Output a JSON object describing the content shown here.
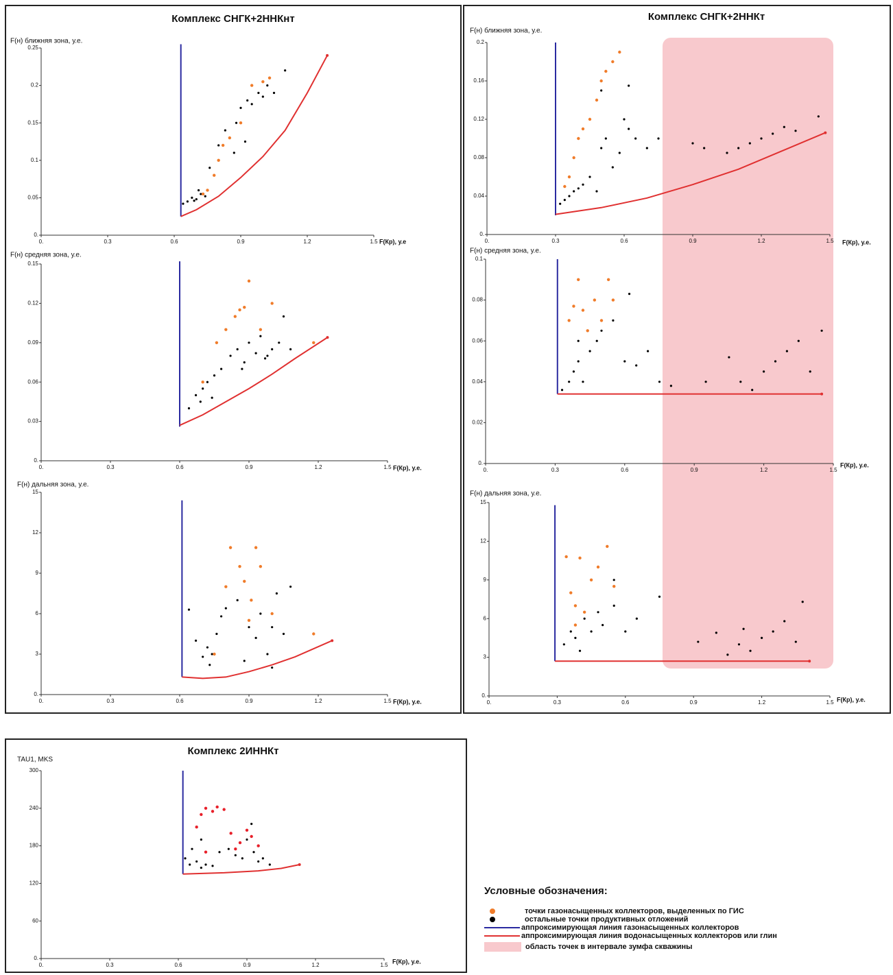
{
  "chart_data": [
    {
      "type": "scatter",
      "title": "Комплекс СНГК+2ННКнт",
      "ylabel": "F(н) ближняя зона, у.е.",
      "xlabel": "F(Кр), у.е",
      "xlim": [
        0,
        1.5
      ],
      "xticks": [
        {
          "value": 0,
          "label": "0."
        },
        0.3,
        0.6,
        0.9,
        1.2,
        1.5
      ],
      "ylim": [
        0,
        0.25
      ],
      "yticks": [
        {
          "value": 0,
          "label": "0."
        },
        0.05,
        0.1,
        0.15,
        0.2,
        0.25
      ],
      "series": [
        {
          "style": "line",
          "color": "#2a2aa0",
          "x": [
            0.63,
            0.63
          ],
          "values": [
            0.025,
            0.255
          ]
        },
        {
          "style": "line",
          "color": "#e03030",
          "x": [
            0.63,
            0.7,
            0.8,
            0.9,
            1.0,
            1.1,
            1.2,
            1.29
          ],
          "values": [
            0.025,
            0.034,
            0.052,
            0.077,
            0.105,
            0.14,
            0.19,
            0.24
          ]
        },
        {
          "style": "markers",
          "color": "#000000",
          "x": [
            0.64,
            0.66,
            0.68,
            0.7,
            0.72,
            0.74,
            0.71,
            0.69,
            0.76,
            0.8,
            0.83,
            0.85,
            0.88,
            0.9,
            0.93,
            0.95,
            0.98,
            1.0,
            1.02,
            1.05,
            1.1,
            0.87,
            0.92
          ],
          "values": [
            0.042,
            0.045,
            0.05,
            0.048,
            0.055,
            0.052,
            0.06,
            0.046,
            0.09,
            0.12,
            0.14,
            0.13,
            0.15,
            0.17,
            0.18,
            0.175,
            0.19,
            0.185,
            0.2,
            0.19,
            0.22,
            0.11,
            0.125
          ]
        },
        {
          "style": "markers",
          "color": "#f07c2a",
          "x": [
            0.75,
            0.78,
            0.8,
            0.82,
            0.85,
            0.9,
            0.95,
            1.0,
            1.03,
            0.73
          ],
          "values": [
            0.06,
            0.08,
            0.1,
            0.12,
            0.13,
            0.15,
            0.2,
            0.205,
            0.21,
            0.055
          ]
        }
      ]
    },
    {
      "type": "scatter",
      "ylabel": "F(н) средняя зона, у.е.",
      "xlabel": "F(Кр), у.е.",
      "xlim": [
        0,
        1.5
      ],
      "xticks": [
        {
          "value": 0,
          "label": "0."
        },
        0.3,
        0.6,
        0.9,
        1.2,
        1.5
      ],
      "ylim": [
        0,
        0.15
      ],
      "yticks": [
        {
          "value": 0,
          "label": "0."
        },
        0.03,
        0.06,
        0.09,
        0.12,
        0.15
      ],
      "series": [
        {
          "style": "line",
          "color": "#2a2aa0",
          "x": [
            0.6,
            0.6
          ],
          "values": [
            0.026,
            0.152
          ]
        },
        {
          "style": "line",
          "color": "#e03030",
          "x": [
            0.6,
            0.7,
            0.8,
            0.9,
            1.0,
            1.1,
            1.24
          ],
          "values": [
            0.027,
            0.035,
            0.045,
            0.055,
            0.066,
            0.078,
            0.094
          ]
        },
        {
          "style": "markers",
          "color": "#000000",
          "x": [
            0.64,
            0.67,
            0.7,
            0.72,
            0.74,
            0.69,
            0.75,
            0.78,
            0.82,
            0.85,
            0.88,
            0.9,
            0.93,
            0.95,
            0.98,
            1.0,
            1.03,
            1.05,
            0.87,
            0.97,
            1.08
          ],
          "values": [
            0.04,
            0.05,
            0.055,
            0.06,
            0.048,
            0.045,
            0.065,
            0.07,
            0.08,
            0.085,
            0.075,
            0.09,
            0.082,
            0.095,
            0.08,
            0.085,
            0.09,
            0.11,
            0.07,
            0.078,
            0.085
          ]
        },
        {
          "style": "markers",
          "color": "#f07c2a",
          "x": [
            0.7,
            0.76,
            0.8,
            0.84,
            0.86,
            0.88,
            0.9,
            0.95,
            1.0,
            1.18
          ],
          "values": [
            0.06,
            0.09,
            0.1,
            0.11,
            0.115,
            0.117,
            0.137,
            0.1,
            0.12,
            0.09
          ]
        }
      ]
    },
    {
      "type": "scatter",
      "ylabel": "F(н) дальняя зона, у.е.",
      "xlabel": "F(Кр), у.е.",
      "xlim": [
        0,
        1.5
      ],
      "xticks": [
        {
          "value": 0,
          "label": "0."
        },
        0.3,
        0.6,
        0.9,
        1.2,
        1.5
      ],
      "ylim": [
        0,
        15
      ],
      "yticks": [
        {
          "value": 0,
          "label": "0."
        },
        3,
        6,
        9,
        12,
        15
      ],
      "series": [
        {
          "style": "line",
          "color": "#2a2aa0",
          "x": [
            0.61,
            0.61
          ],
          "values": [
            1.3,
            14.4
          ]
        },
        {
          "style": "line",
          "color": "#e03030",
          "x": [
            0.61,
            0.7,
            0.8,
            0.9,
            1.0,
            1.1,
            1.26
          ],
          "values": [
            1.3,
            1.2,
            1.3,
            1.7,
            2.2,
            2.8,
            4.0
          ]
        },
        {
          "style": "markers",
          "color": "#000000",
          "x": [
            0.64,
            0.67,
            0.7,
            0.72,
            0.74,
            0.76,
            0.78,
            0.8,
            0.85,
            0.9,
            0.93,
            0.95,
            0.98,
            1.0,
            1.02,
            1.05,
            1.08,
            0.73,
            0.88,
            1.0
          ],
          "values": [
            6.3,
            4,
            2.8,
            3.5,
            3,
            4.5,
            5.8,
            6.4,
            7,
            5,
            4.2,
            6,
            3,
            5,
            7.5,
            4.5,
            8,
            2.2,
            2.5,
            2
          ]
        },
        {
          "style": "markers",
          "color": "#f07c2a",
          "x": [
            0.75,
            0.8,
            0.82,
            0.86,
            0.88,
            0.91,
            0.93,
            0.95,
            1.0,
            1.18,
            0.9
          ],
          "values": [
            3,
            8,
            10.9,
            9.5,
            8.4,
            7,
            10.9,
            9.5,
            6,
            4.5,
            5.5
          ]
        }
      ]
    },
    {
      "type": "scatter",
      "title": "Комплекс СНГК+2ННКт",
      "ylabel": "F(н) ближняя зона, у.е.",
      "xlabel": "F(Кр), у.е.",
      "xlim": [
        0,
        1.5
      ],
      "xticks": [
        {
          "value": 0,
          "label": "0."
        },
        0.3,
        0.6,
        0.9,
        1.2,
        1.5
      ],
      "ylim": [
        0,
        0.2
      ],
      "yticks": [
        {
          "value": 0,
          "label": "0."
        },
        0.04,
        0.08,
        0.12,
        0.16,
        0.2
      ],
      "series": [
        {
          "style": "line",
          "color": "#2a2aa0",
          "x": [
            0.3,
            0.3
          ],
          "values": [
            0.02,
            0.2
          ]
        },
        {
          "style": "line",
          "color": "#e03030",
          "x": [
            0.3,
            0.5,
            0.7,
            0.9,
            1.1,
            1.3,
            1.48
          ],
          "values": [
            0.021,
            0.028,
            0.038,
            0.052,
            0.068,
            0.088,
            0.106
          ]
        },
        {
          "style": "markers",
          "color": "#000000",
          "x": [
            0.32,
            0.34,
            0.36,
            0.38,
            0.4,
            0.42,
            0.45,
            0.48,
            0.5,
            0.52,
            0.55,
            0.58,
            0.6,
            0.62,
            0.65,
            0.7,
            0.75,
            0.9,
            0.95,
            1.05,
            1.1,
            1.15,
            1.2,
            1.25,
            1.3,
            1.35,
            1.45,
            0.5,
            0.55,
            0.62
          ],
          "values": [
            0.032,
            0.036,
            0.04,
            0.045,
            0.048,
            0.052,
            0.06,
            0.045,
            0.09,
            0.1,
            0.07,
            0.085,
            0.12,
            0.11,
            0.1,
            0.09,
            0.1,
            0.095,
            0.09,
            0.085,
            0.09,
            0.095,
            0.1,
            0.105,
            0.112,
            0.108,
            0.123,
            0.15,
            0.18,
            0.155
          ]
        },
        {
          "style": "markers",
          "color": "#f07c2a",
          "x": [
            0.34,
            0.36,
            0.38,
            0.4,
            0.42,
            0.45,
            0.48,
            0.5,
            0.52,
            0.55,
            0.58
          ],
          "values": [
            0.05,
            0.06,
            0.08,
            0.1,
            0.11,
            0.12,
            0.14,
            0.16,
            0.17,
            0.18,
            0.19
          ]
        }
      ]
    },
    {
      "type": "scatter",
      "ylabel": "F(н) средняя зона, у.е.",
      "xlabel": "F(Кр), у.е.",
      "xlim": [
        0,
        1.5
      ],
      "xticks": [
        {
          "value": 0,
          "label": "0."
        },
        0.3,
        0.6,
        0.9,
        1.2,
        1.5
      ],
      "ylim": [
        0,
        0.1
      ],
      "yticks": [
        {
          "value": 0,
          "label": "0."
        },
        0.02,
        0.04,
        0.06,
        0.08,
        0.1
      ],
      "series": [
        {
          "style": "line",
          "color": "#2a2aa0",
          "x": [
            0.31,
            0.31
          ],
          "values": [
            0.034,
            0.1
          ]
        },
        {
          "style": "line",
          "color": "#e03030",
          "x": [
            0.31,
            1.45
          ],
          "values": [
            0.034,
            0.034
          ]
        },
        {
          "style": "markers",
          "color": "#000000",
          "x": [
            0.33,
            0.36,
            0.38,
            0.4,
            0.42,
            0.45,
            0.48,
            0.5,
            0.55,
            0.6,
            0.65,
            0.7,
            0.75,
            0.8,
            0.95,
            1.05,
            1.1,
            1.15,
            1.2,
            1.25,
            1.3,
            1.35,
            1.4,
            1.45,
            0.62,
            0.4
          ],
          "values": [
            0.036,
            0.04,
            0.045,
            0.05,
            0.04,
            0.055,
            0.06,
            0.065,
            0.07,
            0.05,
            0.048,
            0.055,
            0.04,
            0.038,
            0.04,
            0.052,
            0.04,
            0.036,
            0.045,
            0.05,
            0.055,
            0.06,
            0.045,
            0.065,
            0.083,
            0.06
          ]
        },
        {
          "style": "markers",
          "color": "#f07c2a",
          "x": [
            0.36,
            0.38,
            0.4,
            0.42,
            0.44,
            0.47,
            0.5,
            0.53,
            0.55
          ],
          "values": [
            0.07,
            0.077,
            0.09,
            0.075,
            0.065,
            0.08,
            0.07,
            0.09,
            0.08
          ]
        }
      ]
    },
    {
      "type": "scatter",
      "ylabel": "F(н) дальняя зона, у.е.",
      "xlabel": "F(Кр), у.е.",
      "xlim": [
        0,
        1.5
      ],
      "xticks": [
        {
          "value": 0,
          "label": "0."
        },
        0.3,
        0.6,
        0.9,
        1.2,
        1.5
      ],
      "ylim": [
        0,
        15
      ],
      "yticks": [
        {
          "value": 0,
          "label": "0."
        },
        3,
        6,
        9,
        12,
        15
      ],
      "series": [
        {
          "style": "line",
          "color": "#2a2aa0",
          "x": [
            0.29,
            0.29
          ],
          "values": [
            2.7,
            14.8
          ]
        },
        {
          "style": "line",
          "color": "#e03030",
          "x": [
            0.29,
            1.41
          ],
          "values": [
            2.7,
            2.7
          ]
        },
        {
          "style": "markers",
          "color": "#000000",
          "x": [
            0.33,
            0.36,
            0.38,
            0.4,
            0.42,
            0.45,
            0.48,
            0.5,
            0.55,
            0.6,
            0.65,
            0.75,
            0.92,
            1.0,
            1.05,
            1.1,
            1.12,
            1.15,
            1.2,
            1.25,
            1.3,
            1.35,
            1.38,
            0.55
          ],
          "values": [
            4,
            5,
            4.5,
            3.5,
            6,
            5,
            6.5,
            5.5,
            7,
            5,
            6,
            7.7,
            4.2,
            4.9,
            3.2,
            4,
            5.2,
            3.5,
            4.5,
            5,
            5.8,
            4.2,
            7.3,
            9
          ]
        },
        {
          "style": "markers",
          "color": "#f07c2a",
          "x": [
            0.34,
            0.36,
            0.38,
            0.4,
            0.42,
            0.45,
            0.48,
            0.52,
            0.55,
            0.38
          ],
          "values": [
            10.8,
            8,
            7,
            10.7,
            6.5,
            9,
            10,
            11.6,
            8.5,
            5.5
          ]
        }
      ]
    },
    {
      "type": "scatter",
      "title": "Комплекс 2ИННКт",
      "ylabel": "TAU1, MKS",
      "xlabel": "F(Кр), у.е.",
      "xlim": [
        0,
        1.5
      ],
      "xticks": [
        {
          "value": 0,
          "label": "0."
        },
        0.3,
        0.6,
        0.9,
        1.2,
        1.5
      ],
      "ylim": [
        0,
        300
      ],
      "yticks": [
        {
          "value": 0,
          "label": "0."
        },
        60,
        120,
        180,
        240,
        300
      ],
      "series": [
        {
          "style": "line",
          "color": "#2a2aa0",
          "x": [
            0.62,
            0.62
          ],
          "values": [
            135,
            300
          ]
        },
        {
          "style": "line",
          "color": "#e03030",
          "x": [
            0.62,
            0.8,
            0.95,
            1.05,
            1.13
          ],
          "values": [
            135,
            137,
            140,
            144,
            150
          ]
        },
        {
          "style": "markers",
          "color": "#000000",
          "x": [
            0.63,
            0.65,
            0.68,
            0.7,
            0.72,
            0.75,
            0.78,
            0.82,
            0.85,
            0.88,
            0.9,
            0.93,
            0.95,
            0.97,
            1.0,
            0.7,
            0.92,
            0.66
          ],
          "values": [
            160,
            150,
            155,
            145,
            150,
            148,
            170,
            175,
            165,
            160,
            190,
            170,
            155,
            160,
            150,
            190,
            215,
            175
          ]
        },
        {
          "style": "markers",
          "color": "#e8202a",
          "x": [
            0.68,
            0.7,
            0.72,
            0.75,
            0.77,
            0.8,
            0.83,
            0.87,
            0.9,
            0.92,
            0.95,
            0.72,
            0.85
          ],
          "values": [
            210,
            230,
            240,
            235,
            242,
            238,
            200,
            185,
            205,
            195,
            180,
            170,
            175
          ]
        }
      ]
    }
  ],
  "legend": {
    "title": "Условные обозначения:",
    "items": [
      "точки газонасыщенных коллекторов, выделенных по ГИС",
      "остальные точки продуктивных отложений",
      "аппроксимирующая линия газонасыщенных коллекторов",
      "аппроксимирующая линия водонасыщенных коллекторов или глин",
      "область точек в интервале зумфа скважины"
    ]
  }
}
